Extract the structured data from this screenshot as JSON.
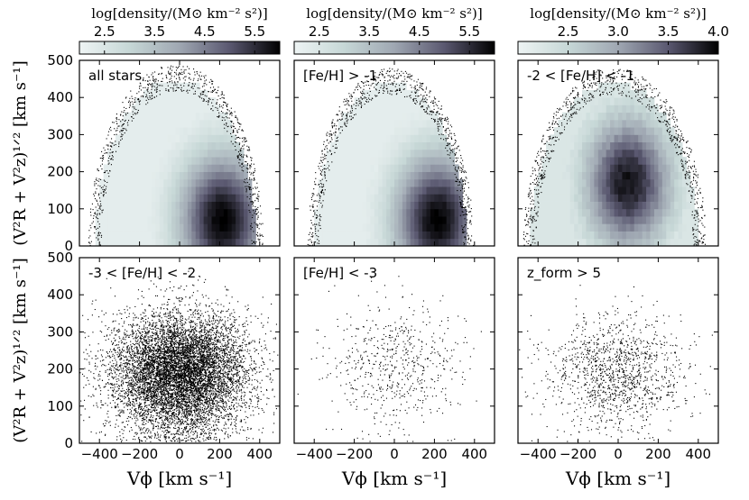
{
  "chart_data": [
    {
      "type": "heatmap",
      "panel_label": "all stars",
      "colorbar": {
        "label": "log[density/(M⊙ km⁻² s²)]",
        "ticks": [
          2.5,
          3.5,
          4.5,
          5.5
        ],
        "range": [
          2.0,
          6.0
        ]
      },
      "density_peak": {
        "v_phi": 215,
        "v_perp": 70,
        "log_density": 6.0
      },
      "envelope": {
        "v_phi_range": [
          -420,
          380
        ],
        "v_perp_max": 450,
        "scatter_points": "sparse points along outer edge"
      }
    },
    {
      "type": "heatmap",
      "panel_label": "[Fe/H] > -1",
      "colorbar": {
        "label": "log[density/(M⊙ km⁻² s²)]",
        "ticks": [
          2.5,
          3.5,
          4.5,
          5.5
        ],
        "range": [
          2.0,
          6.0
        ]
      },
      "density_peak": {
        "v_phi": 215,
        "v_perp": 70,
        "log_density": 6.0
      },
      "envelope": {
        "v_phi_range": [
          -400,
          360
        ],
        "v_perp_max": 440,
        "scatter_points": "sparse points along outer edge"
      }
    },
    {
      "type": "heatmap",
      "panel_label": "-2 < [Fe/H] < -1",
      "colorbar": {
        "label": "log[density/(M⊙ km⁻² s²)]",
        "ticks": [
          2.5,
          3.0,
          3.5,
          4.0
        ],
        "range": [
          2.0,
          4.0
        ]
      },
      "density_peak": {
        "v_phi": 50,
        "v_perp": 170,
        "log_density": 3.9
      },
      "envelope": {
        "v_phi_range": [
          -440,
          400
        ],
        "v_perp_max": 440,
        "scatter_points": "sparse points along outer edge"
      }
    },
    {
      "type": "scatter",
      "panel_label": "-3 < [Fe/H] < -2",
      "distribution": {
        "center_v_phi": 0,
        "center_v_perp": 190,
        "spread_v_phi": 170,
        "spread_v_perp": 80,
        "approx_points": 8500
      }
    },
    {
      "type": "scatter",
      "panel_label": "[Fe/H] < -3",
      "distribution": {
        "center_v_phi": 0,
        "center_v_perp": 210,
        "spread_v_phi": 170,
        "spread_v_perp": 85,
        "approx_points": 600
      }
    },
    {
      "type": "scatter",
      "panel_label": "z_form > 5",
      "distribution": {
        "center_v_phi": 0,
        "center_v_perp": 190,
        "spread_v_phi": 170,
        "spread_v_perp": 75,
        "approx_points": 1300
      }
    }
  ],
  "axes": {
    "xlabel": "Vϕ [km s⁻¹]",
    "ylabel": "(V²R + V²z)¹ᐟ² [km s⁻¹]",
    "xlim": [
      -500,
      500
    ],
    "ylim": [
      0,
      500
    ],
    "xticks": [
      -400,
      -200,
      0,
      200,
      400
    ],
    "yticks": [
      0,
      100,
      200,
      300,
      400,
      500
    ]
  },
  "colors": {
    "cmap_low": "#eef4f4",
    "cmap_mid": "#7d8a9a",
    "cmap_high": "#000000",
    "points": "#000000"
  }
}
